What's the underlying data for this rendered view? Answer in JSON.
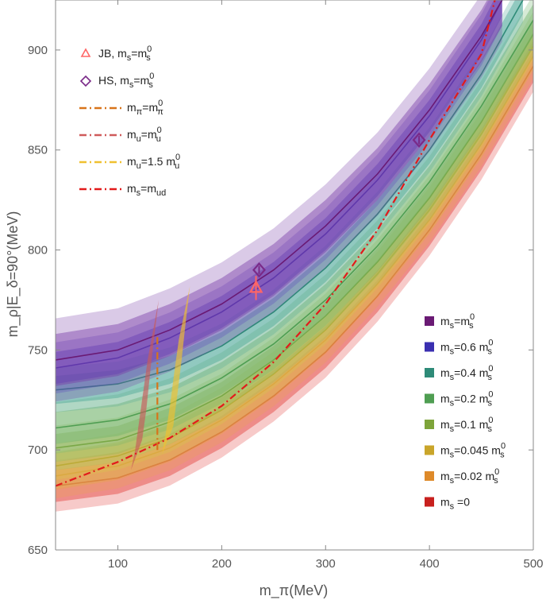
{
  "chart_data": {
    "type": "line",
    "xlabel": "m_π(MeV)",
    "ylabel": "m_ρ|E_δ=90°(MeV)",
    "xlim": [
      40,
      500
    ],
    "ylim": [
      650,
      925
    ],
    "x_ticks": [
      100,
      200,
      300,
      400,
      500
    ],
    "y_ticks": [
      650,
      700,
      750,
      800,
      850,
      900
    ],
    "grid": false,
    "band_series": [
      {
        "name": "ms=ms0",
        "label_base": "m",
        "label_sub": "s",
        "label_mid": "=m",
        "label_sup": "0",
        "label_sub2": "s",
        "color": "#6a1a74",
        "band": "#7b3fa8",
        "x": [
          40,
          100,
          150,
          200,
          250,
          300,
          350,
          400,
          450,
          470
        ],
        "y": [
          745,
          750,
          760,
          773,
          790,
          812,
          838,
          870,
          907,
          925
        ],
        "w": 13
      },
      {
        "name": "ms=0.6 ms0",
        "label_base": "m",
        "label_sub": "s",
        "label_mid": "=0.6 m",
        "label_sup": "0",
        "label_sub2": "s",
        "color": "#3a2fb0",
        "band": "#4a3fc4",
        "x": [
          40,
          100,
          150,
          200,
          250,
          300,
          350,
          400,
          450,
          470
        ],
        "y": [
          741,
          746,
          756,
          769,
          786,
          808,
          835,
          867,
          905,
          925
        ],
        "w": 8
      },
      {
        "name": "ms=0.4 ms0",
        "label_base": "m",
        "label_sub": "s",
        "label_mid": "=0.4 m",
        "label_sup": "0",
        "label_sub2": "s",
        "color": "#2e8b78",
        "band": "#4aa796",
        "x": [
          40,
          100,
          150,
          200,
          250,
          300,
          350,
          400,
          450,
          490
        ],
        "y": [
          730,
          733,
          740,
          752,
          769,
          791,
          818,
          850,
          888,
          925
        ],
        "w": 7
      },
      {
        "name": "ms=0.2 ms0",
        "label_base": "m",
        "label_sub": "s",
        "label_mid": "=0.2 m",
        "label_sup": "0",
        "label_sub2": "s",
        "color": "#4f9e52",
        "band": "#71b36b",
        "x": [
          40,
          100,
          150,
          200,
          250,
          300,
          350,
          400,
          450,
          500
        ],
        "y": [
          711,
          715,
          723,
          736,
          753,
          775,
          802,
          834,
          872,
          915
        ],
        "w": 8
      },
      {
        "name": "ms=0.1 ms0",
        "label_base": "m",
        "label_sub": "s",
        "label_mid": "=0.1 m",
        "label_sup": "0",
        "label_sub2": "s",
        "color": "#7ea43a",
        "band": "#9bbb5a",
        "x": [
          40,
          100,
          150,
          200,
          250,
          300,
          350,
          400,
          450,
          500
        ],
        "y": [
          701,
          705,
          714,
          727,
          745,
          767,
          794,
          826,
          864,
          908
        ],
        "w": 7
      },
      {
        "name": "ms=0.045 ms0",
        "label_base": "m",
        "label_sub": "s",
        "label_mid": "=0.045 m",
        "label_sup": "0",
        "label_sub2": "s",
        "color": "#c9a52a",
        "band": "#d9bf52",
        "x": [
          40,
          100,
          150,
          200,
          250,
          300,
          350,
          400,
          450,
          500
        ],
        "y": [
          692,
          697,
          706,
          720,
          738,
          760,
          788,
          820,
          858,
          902
        ],
        "w": 7
      },
      {
        "name": "ms=0.02 ms0",
        "label_base": "m",
        "label_sub": "s",
        "label_mid": "=0.02 m",
        "label_sup": "0",
        "label_sub2": "s",
        "color": "#de8a2a",
        "band": "#e8a450",
        "x": [
          40,
          100,
          150,
          200,
          250,
          300,
          350,
          400,
          450,
          500
        ],
        "y": [
          687,
          692,
          701,
          715,
          733,
          755,
          783,
          815,
          853,
          897
        ],
        "w": 7
      },
      {
        "name": "ms=0",
        "label_base": "m",
        "label_sub": "s",
        "label_mid": " =0",
        "label_sup": "",
        "label_sub2": "",
        "color": "#c8201e",
        "band": "#e2403c",
        "x": [
          40,
          100,
          150,
          200,
          250,
          300,
          350,
          400,
          450,
          500
        ],
        "y": [
          682,
          686,
          695,
          709,
          727,
          749,
          777,
          810,
          848,
          892
        ],
        "w": 8
      }
    ],
    "dashed_lines": [
      {
        "name": "ms=mud",
        "color": "#e21b1b",
        "x": [
          40,
          100,
          150,
          200,
          250,
          300,
          350,
          400,
          450,
          463
        ],
        "y": [
          682,
          694,
          706,
          722,
          744,
          773,
          810,
          855,
          898,
          925
        ]
      },
      {
        "name": "mpi=mpi0",
        "color": "#d8741a",
        "x": [
          138,
          138
        ],
        "y": [
          700,
          758
        ]
      }
    ],
    "vertical_bands": [
      {
        "name": "mu=mu0",
        "color": "#c85a5a",
        "x": [
          118,
          122,
          126,
          130,
          134
        ],
        "y_lo": [
          690,
          700,
          715,
          730,
          745
        ],
        "y_hi": [
          705,
          720,
          740,
          758,
          775
        ]
      },
      {
        "name": "mu=1.5 mu0",
        "color": "#f0c030",
        "x": [
          148,
          152,
          156,
          160,
          164
        ],
        "y_lo": [
          698,
          710,
          724,
          740,
          755
        ],
        "y_hi": [
          712,
          728,
          745,
          764,
          782
        ]
      }
    ],
    "points": [
      {
        "name": "JB",
        "marker": "triangle",
        "color": "#ff6666",
        "x": 233,
        "y": 781,
        "err": 6
      },
      {
        "name": "HS",
        "marker": "diamond",
        "color": "#7a2a88",
        "x": [
          236,
          390
        ],
        "y": [
          790,
          855
        ],
        "err": 2
      }
    ],
    "legend_top": [
      {
        "type": "triangle",
        "color": "#ff6666",
        "base": "JB, m",
        "sub": "s",
        "mid": "=m",
        "sup": "0",
        "sub2": "s"
      },
      {
        "type": "diamond",
        "color": "#7a2a88",
        "base": "HS, m",
        "sub": "s",
        "mid": "=m",
        "sup": "0",
        "sub2": "s"
      },
      {
        "type": "dashdot",
        "color": "#d8741a",
        "base": "m",
        "sub": "π",
        "mid": "=m",
        "sup": "0",
        "sub2": "π"
      },
      {
        "type": "dashdot",
        "color": "#cf5b5b",
        "base": "m",
        "sub": "u",
        "mid": "=m",
        "sup": "0",
        "sub2": "u"
      },
      {
        "type": "dashdot",
        "color": "#f0c030",
        "base": "m",
        "sub": "u",
        "mid": "=1.5 m",
        "sup": "0",
        "sub2": "u"
      },
      {
        "type": "dashdot",
        "color": "#e21b1b",
        "base": "m",
        "sub": "s",
        "mid": "=m",
        "sup": "",
        "sub2": "ud"
      }
    ]
  }
}
